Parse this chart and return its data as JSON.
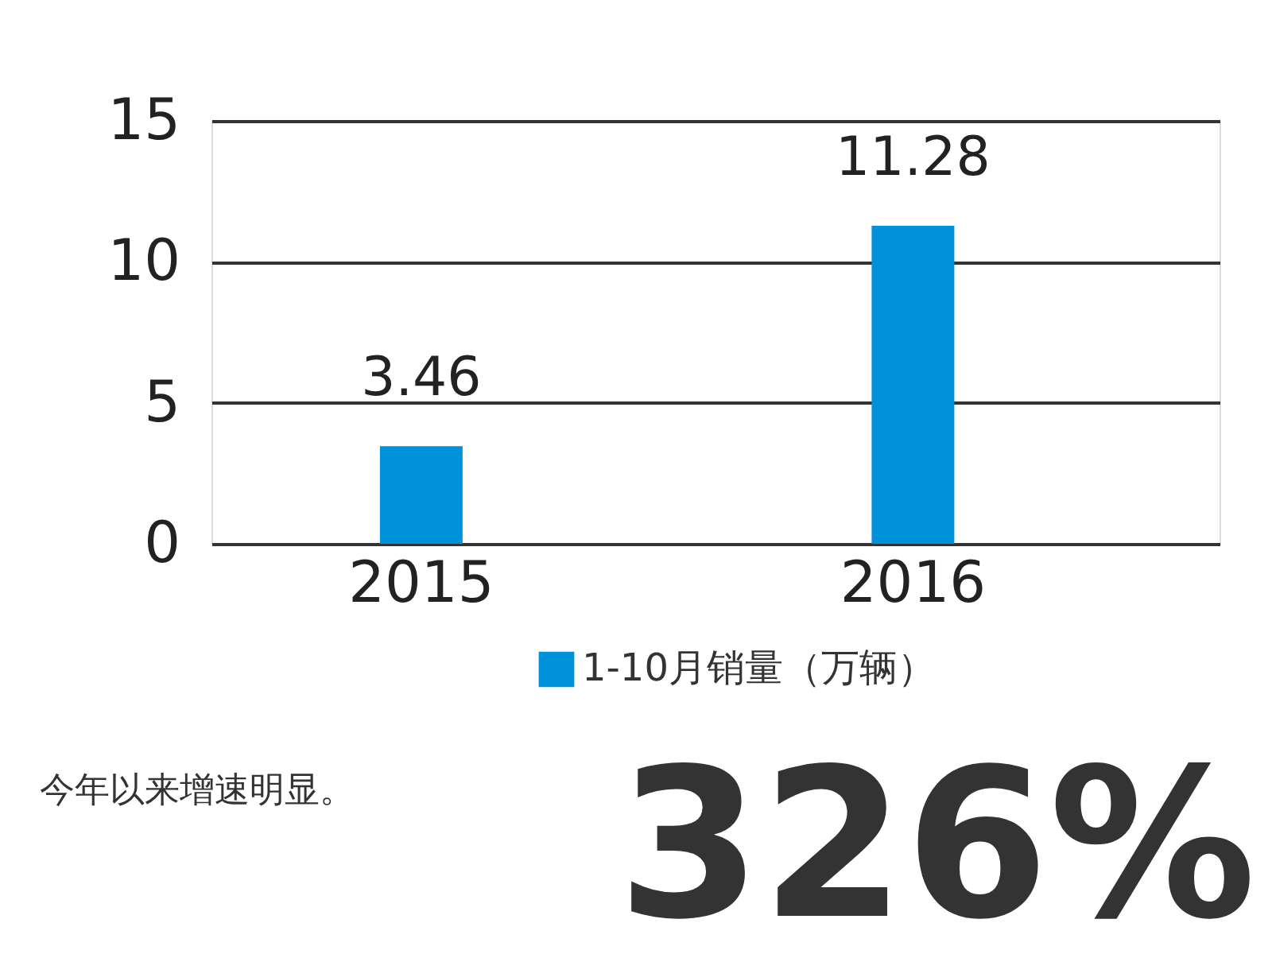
{
  "chart_data": {
    "type": "bar",
    "categories": [
      "2015",
      "2016"
    ],
    "series": [
      {
        "name": "1-10月销量（万辆）",
        "color": "#0091db",
        "values": [
          3.46,
          11.28
        ]
      }
    ],
    "ylim": [
      0,
      15
    ],
    "yticks": [
      0,
      5,
      10,
      15
    ],
    "grid": "y",
    "data_labels": true,
    "legend": "bottom",
    "annotations": [
      "今年以来增速明显。",
      "326%"
    ]
  }
}
